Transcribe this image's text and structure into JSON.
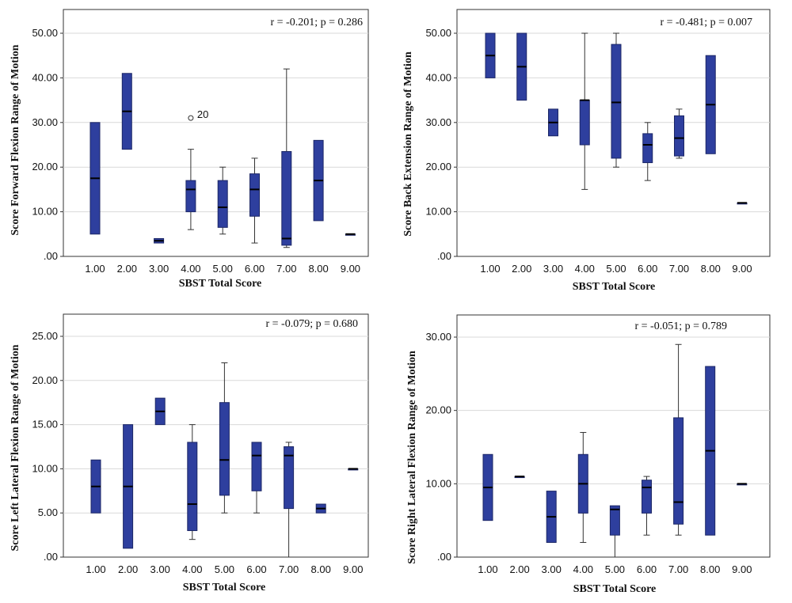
{
  "chart_data": [
    {
      "type": "boxplot",
      "xlabel": "SBST Total Score",
      "ylabel": "Score Forward Flexion Range of Motion",
      "annotation": "r = -0.201; p = 0.286",
      "categories": [
        "1.00",
        "2.00",
        "3.00",
        "4.00",
        "5.00",
        "6.00",
        "7.00",
        "8.00",
        "9.00"
      ],
      "ylim": [
        0,
        50
      ],
      "yticks": [
        0,
        10,
        20,
        30,
        40,
        50
      ],
      "ytick_labels": [
        ".00",
        "10.00",
        "20.00",
        "30.00",
        "40.00",
        "50.00"
      ],
      "boxes": [
        {
          "min": 5,
          "q1": 5,
          "median": 17.5,
          "q3": 30,
          "max": 30
        },
        {
          "min": 24,
          "q1": 24,
          "median": 32.5,
          "q3": 41,
          "max": 41
        },
        {
          "min": 3,
          "q1": 3,
          "median": 3.5,
          "q3": 4,
          "max": 4
        },
        {
          "min": 6,
          "q1": 10,
          "median": 15,
          "q3": 17,
          "max": 24
        },
        {
          "min": 5,
          "q1": 6.5,
          "median": 11,
          "q3": 17,
          "max": 20
        },
        {
          "min": 3,
          "q1": 9,
          "median": 15,
          "q3": 18.5,
          "max": 22
        },
        {
          "min": 2,
          "q1": 2.5,
          "median": 4,
          "q3": 23.5,
          "max": 42
        },
        {
          "min": 8,
          "q1": 8,
          "median": 17,
          "q3": 26,
          "max": 26
        },
        {
          "min": 5,
          "q1": 5,
          "median": 5,
          "q3": 5,
          "max": 5
        }
      ],
      "outliers": [
        {
          "category": "4.00",
          "value": 31,
          "label": "20"
        }
      ]
    },
    {
      "type": "boxplot",
      "xlabel": "SBST Total Score",
      "ylabel": "Score Back Extension Range of Motion",
      "annotation": "r = -0.481; p = 0.007",
      "categories": [
        "1.00",
        "2.00",
        "3.00",
        "4.00",
        "5.00",
        "6.00",
        "7.00",
        "8.00",
        "9.00"
      ],
      "ylim": [
        0,
        50
      ],
      "yticks": [
        0,
        10,
        20,
        30,
        40,
        50
      ],
      "ytick_labels": [
        ".00",
        "10.00",
        "20.00",
        "30.00",
        "40.00",
        "50.00"
      ],
      "boxes": [
        {
          "min": 40,
          "q1": 40,
          "median": 45,
          "q3": 50,
          "max": 50
        },
        {
          "min": 35,
          "q1": 35,
          "median": 42.5,
          "q3": 50,
          "max": 50
        },
        {
          "min": 27,
          "q1": 27,
          "median": 30,
          "q3": 33,
          "max": 33
        },
        {
          "min": 15,
          "q1": 25,
          "median": 35,
          "q3": 35,
          "max": 50
        },
        {
          "min": 20,
          "q1": 22,
          "median": 34.5,
          "q3": 47.5,
          "max": 50
        },
        {
          "min": 17,
          "q1": 21,
          "median": 25,
          "q3": 27.5,
          "max": 30
        },
        {
          "min": 22,
          "q1": 22.5,
          "median": 26.5,
          "q3": 31.5,
          "max": 33
        },
        {
          "min": 23,
          "q1": 23,
          "median": 34,
          "q3": 45,
          "max": 45
        },
        {
          "min": 12,
          "q1": 12,
          "median": 12,
          "q3": 12,
          "max": 12
        }
      ],
      "outliers": []
    },
    {
      "type": "boxplot",
      "xlabel": "SBST Total Score",
      "ylabel": "Score Left Lateral Flexion Range of Motion",
      "annotation": "r = -0.079; p = 0.680",
      "categories": [
        "1.00",
        "2.00",
        "3.00",
        "4.00",
        "5.00",
        "6.00",
        "7.00",
        "8.00",
        "9.00"
      ],
      "ylim": [
        0,
        25
      ],
      "yticks": [
        0,
        5,
        10,
        15,
        20,
        25
      ],
      "ytick_labels": [
        ".00",
        "5.00",
        "10.00",
        "15.00",
        "20.00",
        "25.00"
      ],
      "boxes": [
        {
          "min": 5,
          "q1": 5,
          "median": 8,
          "q3": 11,
          "max": 11
        },
        {
          "min": 1,
          "q1": 1,
          "median": 8,
          "q3": 15,
          "max": 15
        },
        {
          "min": 15,
          "q1": 15,
          "median": 16.5,
          "q3": 18,
          "max": 18
        },
        {
          "min": 2,
          "q1": 3,
          "median": 6,
          "q3": 13,
          "max": 15
        },
        {
          "min": 5,
          "q1": 7,
          "median": 11,
          "q3": 17.5,
          "max": 22
        },
        {
          "min": 5,
          "q1": 7.5,
          "median": 11.5,
          "q3": 13,
          "max": 13
        },
        {
          "min": 0,
          "q1": 5.5,
          "median": 11.5,
          "q3": 12.5,
          "max": 13
        },
        {
          "min": 5,
          "q1": 5,
          "median": 5.5,
          "q3": 6,
          "max": 6
        },
        {
          "min": 10,
          "q1": 10,
          "median": 10,
          "q3": 10,
          "max": 10
        }
      ],
      "outliers": []
    },
    {
      "type": "boxplot",
      "xlabel": "SBST Total Score",
      "ylabel": "Score Right Lateral Flexion Range of Motion",
      "annotation": "r = -0.051; p = 0.789",
      "categories": [
        "1.00",
        "2.00",
        "3.00",
        "4.00",
        "5.00",
        "6.00",
        "7.00",
        "8.00",
        "9.00"
      ],
      "ylim": [
        0,
        30
      ],
      "yticks": [
        0,
        10,
        20,
        30
      ],
      "ytick_labels": [
        ".00",
        "10.00",
        "20.00",
        "30.00"
      ],
      "boxes": [
        {
          "min": 5,
          "q1": 5,
          "median": 9.5,
          "q3": 14,
          "max": 14
        },
        {
          "min": 11,
          "q1": 11,
          "median": 11,
          "q3": 11,
          "max": 11
        },
        {
          "min": 2,
          "q1": 2,
          "median": 5.5,
          "q3": 9,
          "max": 9
        },
        {
          "min": 2,
          "q1": 6,
          "median": 10,
          "q3": 14,
          "max": 17
        },
        {
          "min": 0,
          "q1": 3,
          "median": 6.5,
          "q3": 7,
          "max": 7
        },
        {
          "min": 3,
          "q1": 6,
          "median": 9.5,
          "q3": 10.5,
          "max": 11
        },
        {
          "min": 3,
          "q1": 4.5,
          "median": 7.5,
          "q3": 19,
          "max": 29
        },
        {
          "min": 3,
          "q1": 3,
          "median": 14.5,
          "q3": 26,
          "max": 26
        },
        {
          "min": 10,
          "q1": 10,
          "median": 10,
          "q3": 10,
          "max": 10
        }
      ],
      "outliers": []
    }
  ],
  "style": {
    "box_fill": "#2e3f9e",
    "box_stroke": "#1c2766",
    "gridline": "#d9d9d9",
    "axis": "#333333"
  }
}
